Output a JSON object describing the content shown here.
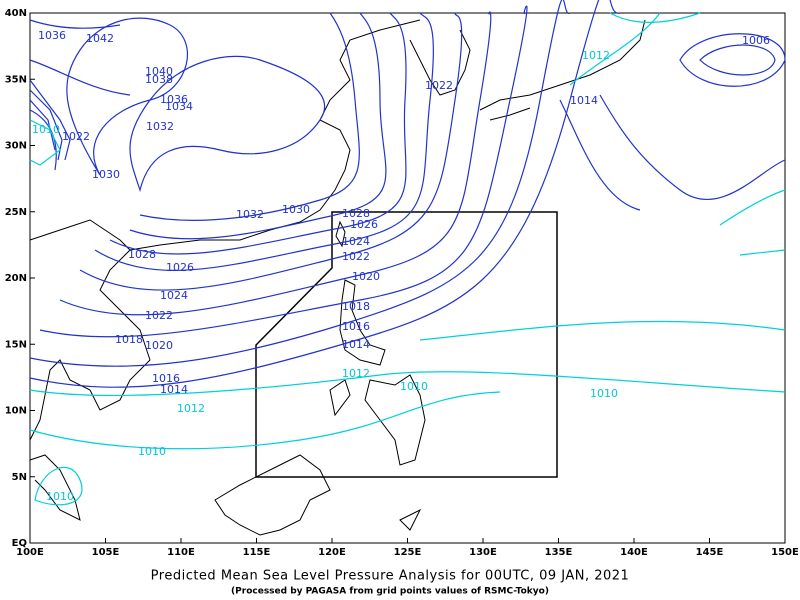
{
  "map": {
    "title": "Predicted Mean Sea Level Pressure Analysis for 00UTC, 09 JAN, 2021",
    "subtitle": "(Processed by PAGASA from grid points values of RSMC-Tokyo)",
    "lat_labels": [
      "40N",
      "35N",
      "30N",
      "25N",
      "20N",
      "15N",
      "10N",
      "5N",
      "EQ"
    ],
    "lon_labels": [
      "100E",
      "105E",
      "110E",
      "115E",
      "120E",
      "125E",
      "130E",
      "135E",
      "140E",
      "145E",
      "150E"
    ],
    "contours": [
      "1036",
      "1042",
      "1040",
      "1038",
      "1036",
      "1034",
      "1032",
      "1030",
      "1032",
      "1030",
      "1028",
      "1026",
      "1024",
      "1022",
      "1020",
      "1018",
      "1016",
      "1014",
      "1012",
      "1010",
      "1010",
      "1010",
      "1028",
      "1026",
      "1024",
      "1022",
      "1020",
      "1018",
      "1016",
      "1014",
      "1012",
      "1010",
      "1010",
      "1012",
      "1014",
      "1022",
      "1006",
      "1022"
    ]
  }
}
